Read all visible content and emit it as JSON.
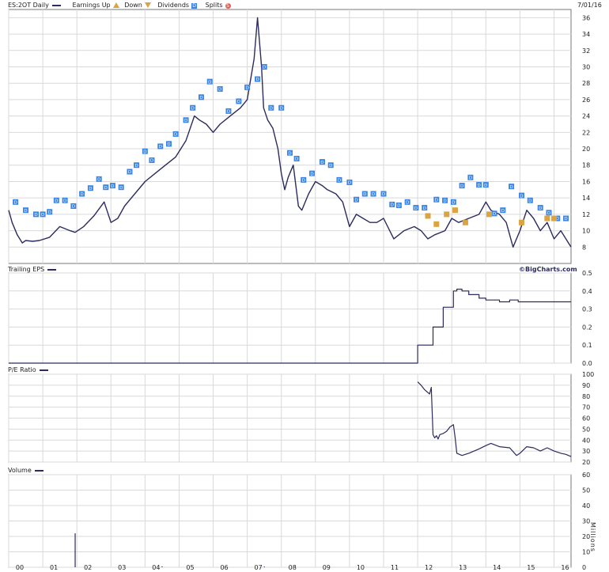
{
  "header": {
    "symbol_label": "ES:2OT Daily",
    "earnings_label": "Earnings Up",
    "down_label": "Down",
    "dividends_label": "Dividends",
    "dividend_icon_letter": "D",
    "splits_label": "Splits",
    "split_icon_letter": "S",
    "date": "7/01/16"
  },
  "panels": {
    "eps_label": "Trailing EPS",
    "pe_label": "P/E Ratio",
    "volume_label": "Volume",
    "volume_unit": "Millions",
    "watermark": "©BigCharts.com"
  },
  "colors": {
    "line": "#2b2b5e",
    "dividend": "#3a86e8",
    "earnings": "#d9a441",
    "grid": "#d9d9d9"
  },
  "chart_data": [
    {
      "type": "line",
      "name": "price",
      "ylim": [
        6,
        37
      ],
      "yticks": [
        8,
        10,
        12,
        14,
        16,
        18,
        20,
        22,
        24,
        26,
        28,
        30,
        32,
        34,
        36
      ],
      "xlim": [
        2000,
        2016.5
      ],
      "xticks": [
        "00",
        "01",
        "02",
        "03",
        "04",
        "05",
        "06",
        "07",
        "08",
        "09",
        "10",
        "11",
        "12",
        "13",
        "14",
        "15",
        "16"
      ],
      "x": [
        2000.0,
        2000.1,
        2000.25,
        2000.4,
        2000.5,
        2000.7,
        2000.9,
        2001.2,
        2001.5,
        2001.8,
        2001.95,
        2002.2,
        2002.5,
        2002.8,
        2003.0,
        2003.2,
        2003.4,
        2003.7,
        2004.0,
        2004.3,
        2004.6,
        2004.9,
        2005.2,
        2005.45,
        2005.6,
        2005.8,
        2006.0,
        2006.2,
        2006.5,
        2006.8,
        2007.0,
        2007.2,
        2007.3,
        2007.42,
        2007.48,
        2007.6,
        2007.75,
        2007.9,
        2008.0,
        2008.1,
        2008.2,
        2008.35,
        2008.5,
        2008.6,
        2008.8,
        2009.0,
        2009.2,
        2009.35,
        2009.6,
        2009.8,
        2010.0,
        2010.2,
        2010.4,
        2010.6,
        2010.8,
        2011.0,
        2011.3,
        2011.6,
        2011.9,
        2012.1,
        2012.3,
        2012.5,
        2012.8,
        2013.0,
        2013.2,
        2013.5,
        2013.8,
        2014.0,
        2014.15,
        2014.4,
        2014.6,
        2014.8,
        2015.0,
        2015.2,
        2015.4,
        2015.6,
        2015.8,
        2016.0,
        2016.2,
        2016.35,
        2016.5
      ],
      "y": [
        12.5,
        11.0,
        9.5,
        8.5,
        8.8,
        8.7,
        8.8,
        9.2,
        10.5,
        10.0,
        9.8,
        10.5,
        11.8,
        13.5,
        11.0,
        11.5,
        13.0,
        14.5,
        16.0,
        17.0,
        18.0,
        19.0,
        21.0,
        24.0,
        23.5,
        23.0,
        22.0,
        23.0,
        24.0,
        25.0,
        26.0,
        31.0,
        36.0,
        30.0,
        25.0,
        23.5,
        22.5,
        20.0,
        17.0,
        15.0,
        16.5,
        18.0,
        13.0,
        12.5,
        14.5,
        16.0,
        15.5,
        15.0,
        14.5,
        13.5,
        10.5,
        12.0,
        11.5,
        11.0,
        11.0,
        11.5,
        9.0,
        10.0,
        10.5,
        10.0,
        9.0,
        9.5,
        10.0,
        11.5,
        11.0,
        11.5,
        12.0,
        13.5,
        12.5,
        12.0,
        11.0,
        8.0,
        10.0,
        12.5,
        11.5,
        10.0,
        11.0,
        9.0,
        10.0,
        9.0,
        8.0
      ]
    },
    {
      "type": "scatter",
      "name": "dividends",
      "x": [
        2000.2,
        2000.5,
        2000.8,
        2001.0,
        2001.2,
        2001.4,
        2001.65,
        2001.9,
        2002.15,
        2002.4,
        2002.65,
        2002.85,
        2003.05,
        2003.3,
        2003.55,
        2003.75,
        2004.0,
        2004.2,
        2004.45,
        2004.7,
        2004.9,
        2005.2,
        2005.4,
        2005.65,
        2005.9,
        2006.2,
        2006.45,
        2006.75,
        2007.0,
        2007.3,
        2007.5,
        2007.7,
        2008.0,
        2008.25,
        2008.45,
        2008.65,
        2008.9,
        2009.2,
        2009.45,
        2009.7,
        2010.0,
        2010.2,
        2010.45,
        2010.7,
        2011.0,
        2011.25,
        2011.45,
        2011.7,
        2011.95,
        2012.2,
        2012.55,
        2012.8,
        2013.05,
        2013.3,
        2013.55,
        2013.8,
        2014.0,
        2014.25,
        2014.5,
        2014.75,
        2015.05,
        2015.3,
        2015.6,
        2015.85,
        2016.1,
        2016.35
      ],
      "y": [
        13.5,
        12.5,
        12.0,
        12.0,
        12.3,
        13.7,
        13.7,
        13.0,
        14.5,
        15.2,
        16.3,
        15.3,
        15.5,
        15.3,
        17.2,
        18.0,
        19.7,
        18.6,
        20.3,
        20.6,
        21.8,
        23.5,
        25.0,
        26.3,
        28.2,
        27.3,
        24.6,
        25.8,
        27.5,
        28.5,
        30.0,
        25.0,
        25.0,
        19.5,
        18.8,
        16.2,
        17.0,
        18.4,
        18.0,
        16.2,
        15.9,
        13.8,
        14.5,
        14.5,
        14.5,
        13.2,
        13.1,
        13.5,
        12.8,
        12.8,
        13.8,
        13.7,
        13.5,
        15.5,
        16.5,
        15.6,
        15.6,
        12.1,
        12.5,
        15.4,
        14.3,
        13.7,
        12.8,
        12.2,
        11.5,
        11.5
      ]
    },
    {
      "type": "scatter",
      "name": "earnings",
      "x": [
        2012.3,
        2012.55,
        2012.85,
        2013.1,
        2013.4,
        2014.1,
        2015.05,
        2015.8,
        2016.0
      ],
      "y": [
        11.8,
        10.8,
        12.0,
        12.5,
        11.0,
        12.0,
        11.0,
        11.5,
        11.5
      ]
    },
    {
      "type": "line",
      "name": "trailing_eps",
      "ylim": [
        0,
        0.5
      ],
      "yticks": [
        0.0,
        0.1,
        0.2,
        0.3,
        0.4,
        0.5
      ],
      "x": [
        2000.0,
        2012.0,
        2012.0,
        2012.45,
        2012.45,
        2012.75,
        2012.75,
        2013.05,
        2013.05,
        2013.15,
        2013.15,
        2013.3,
        2013.3,
        2013.5,
        2013.5,
        2013.8,
        2013.8,
        2014.0,
        2014.0,
        2014.4,
        2014.4,
        2014.7,
        2014.7,
        2014.95,
        2014.95,
        2015.2,
        2015.2,
        2016.5
      ],
      "y": [
        0.0,
        0.0,
        0.1,
        0.1,
        0.2,
        0.2,
        0.31,
        0.31,
        0.4,
        0.4,
        0.41,
        0.41,
        0.4,
        0.4,
        0.38,
        0.38,
        0.36,
        0.36,
        0.35,
        0.35,
        0.34,
        0.34,
        0.35,
        0.35,
        0.34,
        0.34,
        0.34,
        0.34
      ]
    },
    {
      "type": "line",
      "name": "pe_ratio",
      "ylim": [
        20,
        100
      ],
      "yticks": [
        20,
        30,
        40,
        50,
        60,
        70,
        80,
        90,
        100
      ],
      "x": [
        2012.0,
        2012.1,
        2012.2,
        2012.35,
        2012.4,
        2012.45,
        2012.5,
        2012.55,
        2012.6,
        2012.65,
        2012.75,
        2012.85,
        2012.95,
        2013.05,
        2013.1,
        2013.15,
        2013.3,
        2013.5,
        2013.8,
        2014.0,
        2014.15,
        2014.4,
        2014.7,
        2014.9,
        2015.0,
        2015.2,
        2015.4,
        2015.6,
        2015.8,
        2016.0,
        2016.2,
        2016.35,
        2016.5
      ],
      "y": [
        93,
        90,
        86,
        82,
        88,
        45,
        42,
        44,
        41,
        45,
        46,
        48,
        52,
        54,
        42,
        28,
        26,
        28,
        32,
        35,
        37,
        34,
        33,
        26,
        28,
        34,
        33,
        30,
        33,
        30,
        28,
        27,
        25
      ]
    },
    {
      "type": "bar",
      "name": "volume",
      "ylim": [
        0,
        60
      ],
      "yticks": [
        0,
        10,
        20,
        30,
        40,
        50,
        60
      ],
      "x": [
        2001.95,
        2004.5,
        2007.5,
        2008.4
      ],
      "values": [
        22,
        0.6,
        0.5,
        0.4
      ]
    }
  ]
}
